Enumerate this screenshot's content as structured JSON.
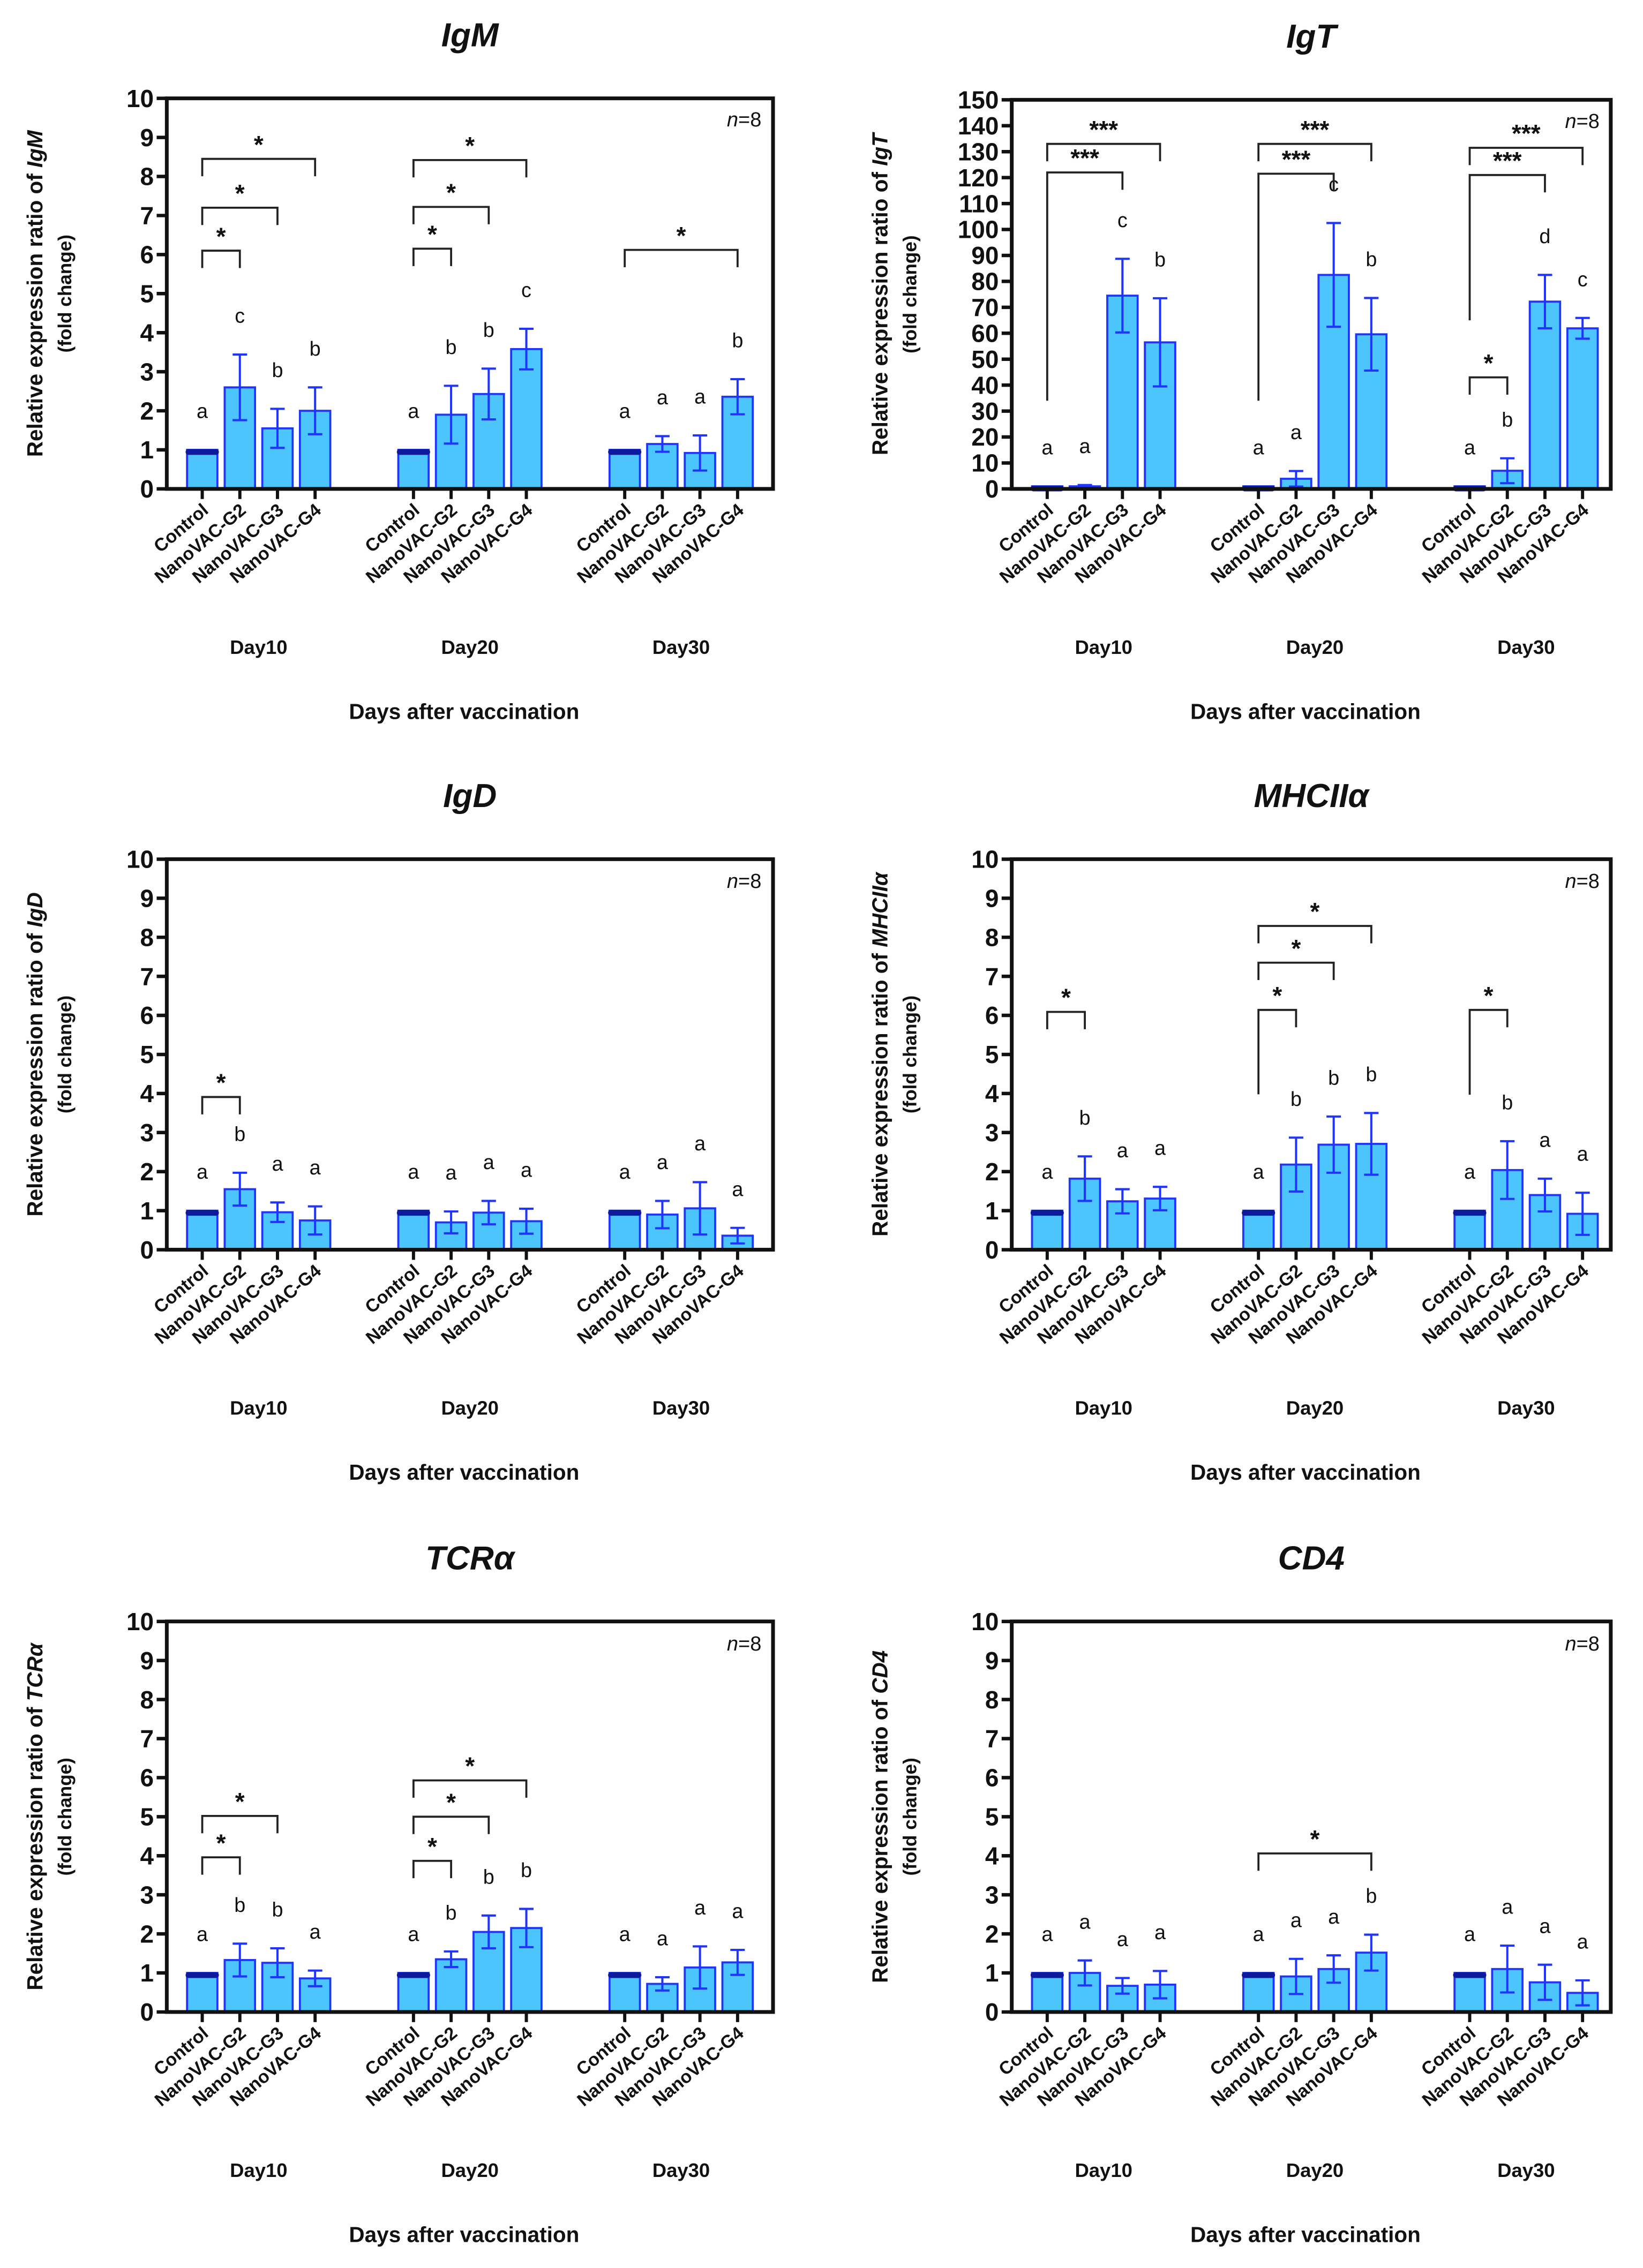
{
  "colors": {
    "bar_fill": "#4cc4fc",
    "bar_stroke": "#1f35ff",
    "error_bar": "#1f35ff",
    "control_points": "#0e1a9c",
    "bracket": "#222222"
  },
  "chart_data": [
    {
      "type": "bar",
      "title": "IgM",
      "ylabel_prefix": "Relative expression ratio of ",
      "ylabel_gene": "IgM",
      "ylabel_line2": "(fold change)",
      "ylim": [
        0,
        10
      ],
      "yticks": [
        "0",
        "1",
        "2",
        "3",
        "4",
        "5",
        "6",
        "7",
        "8",
        "9",
        "10"
      ],
      "n_label": "n=8",
      "xlabel": "Days after vaccination",
      "groups": [
        "Day10",
        "Day20",
        "Day30"
      ],
      "categories": [
        "Control",
        "NanoVAC-G2",
        "NanoVAC-G3",
        "NanoVAC-G4"
      ],
      "series": [
        {
          "group": "Day10",
          "means": [
            1.0,
            2.6,
            1.55,
            2.0
          ],
          "sd": [
            0.0,
            0.84,
            0.5,
            0.6
          ],
          "letters": [
            "a",
            "c",
            "b",
            "b"
          ]
        },
        {
          "group": "Day20",
          "means": [
            1.0,
            1.9,
            2.43,
            3.58
          ],
          "sd": [
            0.0,
            0.74,
            0.65,
            0.52
          ],
          "letters": [
            "a",
            "b",
            "b",
            "c"
          ]
        },
        {
          "group": "Day30",
          "means": [
            1.0,
            1.15,
            0.92,
            2.36
          ],
          "sd": [
            0.0,
            0.2,
            0.45,
            0.45
          ],
          "letters": [
            "a",
            "a",
            "a",
            "b"
          ]
        }
      ],
      "significance": [
        {
          "group": 0,
          "from": 0,
          "to": 1,
          "y": 6.1,
          "label": "*"
        },
        {
          "group": 0,
          "from": 0,
          "to": 2,
          "y": 7.2,
          "label": "*"
        },
        {
          "group": 0,
          "from": 0,
          "to": 3,
          "y": 8.45,
          "label": "*"
        },
        {
          "group": 1,
          "from": 0,
          "to": 1,
          "y": 6.15,
          "label": "*"
        },
        {
          "group": 1,
          "from": 0,
          "to": 2,
          "y": 7.22,
          "label": "*"
        },
        {
          "group": 1,
          "from": 0,
          "to": 3,
          "y": 8.42,
          "label": "*"
        },
        {
          "group": 2,
          "from": 0,
          "to": 3,
          "y": 6.12,
          "label": "*"
        }
      ]
    },
    {
      "type": "bar",
      "title": "IgT",
      "ylabel_prefix": "Relative expression ratio of ",
      "ylabel_gene": "IgT",
      "ylabel_line2": "(fold change)",
      "ylim": [
        0,
        150
      ],
      "yticks": [
        "0",
        "10",
        "20",
        "30",
        "40",
        "50",
        "60",
        "70",
        "80",
        "90",
        "100",
        "110",
        "120",
        "130",
        "140",
        "150"
      ],
      "n_label": "n=8",
      "xlabel": "Days after vaccination",
      "groups": [
        "Day10",
        "Day20",
        "Day30"
      ],
      "categories": [
        "Control",
        "NanoVAC-G2",
        "NanoVAC-G3",
        "NanoVAC-G4"
      ],
      "series": [
        {
          "group": "Day10",
          "means": [
            1.0,
            1.0,
            74.5,
            56.5
          ],
          "sd": [
            0.0,
            0.5,
            14.2,
            17.0
          ],
          "letters": [
            "a",
            "a",
            "c",
            "b"
          ]
        },
        {
          "group": "Day20",
          "means": [
            1.0,
            3.9,
            82.5,
            59.6
          ],
          "sd": [
            0.0,
            3.0,
            20.0,
            14.0
          ],
          "letters": [
            "a",
            "a",
            "c",
            "b"
          ]
        },
        {
          "group": "Day30",
          "means": [
            1.0,
            7.0,
            72.2,
            61.9
          ],
          "sd": [
            0.0,
            4.8,
            10.3,
            4.0
          ],
          "letters": [
            "a",
            "b",
            "d",
            "c"
          ]
        }
      ],
      "significance": [
        {
          "group": 0,
          "from": 0,
          "to": 2,
          "y": 122,
          "label": "***",
          "drop_to": 34
        },
        {
          "group": 0,
          "from": 0,
          "to": 3,
          "y": 133,
          "label": "***"
        },
        {
          "group": 1,
          "from": 0,
          "to": 2,
          "y": 121.5,
          "label": "***",
          "drop_to": 34
        },
        {
          "group": 1,
          "from": 0,
          "to": 3,
          "y": 133,
          "label": "***"
        },
        {
          "group": 2,
          "from": 0,
          "to": 1,
          "y": 43,
          "label": "*"
        },
        {
          "group": 2,
          "from": 0,
          "to": 2,
          "y": 121,
          "label": "***",
          "drop_to": 65
        },
        {
          "group": 2,
          "from": 0,
          "to": 3,
          "y": 131.5,
          "label": "***"
        }
      ]
    },
    {
      "type": "bar",
      "title": "IgD",
      "ylabel_prefix": "Relative expression ratio of ",
      "ylabel_gene": "IgD",
      "ylabel_line2": "(fold change)",
      "ylim": [
        0,
        10
      ],
      "yticks": [
        "0",
        "1",
        "2",
        "3",
        "4",
        "5",
        "6",
        "7",
        "8",
        "9",
        "10"
      ],
      "n_label": "n=8",
      "xlabel": "Days after vaccination",
      "groups": [
        "Day10",
        "Day20",
        "Day30"
      ],
      "categories": [
        "Control",
        "NanoVAC-G2",
        "NanoVAC-G3",
        "NanoVAC-G4"
      ],
      "series": [
        {
          "group": "Day10",
          "means": [
            1.0,
            1.55,
            0.96,
            0.75
          ],
          "sd": [
            0.0,
            0.42,
            0.25,
            0.36
          ],
          "letters": [
            "a",
            "b",
            "a",
            "a"
          ]
        },
        {
          "group": "Day20",
          "means": [
            1.0,
            0.7,
            0.95,
            0.73
          ],
          "sd": [
            0.0,
            0.28,
            0.3,
            0.32
          ],
          "letters": [
            "a",
            "a",
            "a",
            "a"
          ]
        },
        {
          "group": "Day30",
          "means": [
            1.0,
            0.9,
            1.06,
            0.36
          ],
          "sd": [
            0.0,
            0.35,
            0.67,
            0.2
          ],
          "letters": [
            "a",
            "a",
            "a",
            "a"
          ]
        }
      ],
      "significance": [
        {
          "group": 0,
          "from": 0,
          "to": 1,
          "y": 3.91,
          "label": "*"
        }
      ]
    },
    {
      "type": "bar",
      "title": "MHCIIα",
      "ylabel_prefix": "Relative expression ratio of ",
      "ylabel_gene": "MHCIIα",
      "ylabel_line2": "(fold change)",
      "ylim": [
        0,
        10
      ],
      "yticks": [
        "0",
        "1",
        "2",
        "3",
        "4",
        "5",
        "6",
        "7",
        "8",
        "9",
        "10"
      ],
      "n_label": "n=8",
      "xlabel": "Days after vaccination",
      "groups": [
        "Day10",
        "Day20",
        "Day30"
      ],
      "categories": [
        "Control",
        "NanoVAC-G2",
        "NanoVAC-G3",
        "NanoVAC-G4"
      ],
      "series": [
        {
          "group": "Day10",
          "means": [
            1.0,
            1.82,
            1.24,
            1.31
          ],
          "sd": [
            0.0,
            0.57,
            0.31,
            0.3
          ],
          "letters": [
            "a",
            "b",
            "a",
            "a"
          ]
        },
        {
          "group": "Day20",
          "means": [
            1.0,
            2.18,
            2.69,
            2.71
          ],
          "sd": [
            0.0,
            0.69,
            0.72,
            0.79
          ],
          "letters": [
            "a",
            "b",
            "b",
            "b"
          ]
        },
        {
          "group": "Day30",
          "means": [
            1.0,
            2.04,
            1.4,
            0.92
          ],
          "sd": [
            0.0,
            0.74,
            0.42,
            0.54
          ],
          "letters": [
            "a",
            "b",
            "a",
            "a"
          ]
        }
      ],
      "significance": [
        {
          "group": 0,
          "from": 0,
          "to": 1,
          "y": 6.09,
          "label": "*"
        },
        {
          "group": 1,
          "from": 0,
          "to": 1,
          "y": 6.14,
          "label": "*",
          "drop_to": 3.98
        },
        {
          "group": 1,
          "from": 0,
          "to": 2,
          "y": 7.35,
          "label": "*"
        },
        {
          "group": 1,
          "from": 0,
          "to": 3,
          "y": 8.29,
          "label": "*"
        },
        {
          "group": 2,
          "from": 0,
          "to": 1,
          "y": 6.14,
          "label": "*",
          "drop_to": 3.97
        }
      ]
    },
    {
      "type": "bar",
      "title": "TCRα",
      "ylabel_prefix": "Relative expression ratio of ",
      "ylabel_gene": "TCRα",
      "ylabel_line2": "(fold change)",
      "ylim": [
        0,
        10
      ],
      "yticks": [
        "0",
        "1",
        "2",
        "3",
        "4",
        "5",
        "6",
        "7",
        "8",
        "9",
        "10"
      ],
      "n_label": "n=8",
      "xlabel": "Days after vaccination",
      "groups": [
        "Day10",
        "Day20",
        "Day30"
      ],
      "categories": [
        "Control",
        "NanoVAC-G2",
        "NanoVAC-G3",
        "NanoVAC-G4"
      ],
      "series": [
        {
          "group": "Day10",
          "means": [
            1.0,
            1.33,
            1.26,
            0.86
          ],
          "sd": [
            0.0,
            0.42,
            0.37,
            0.2
          ],
          "letters": [
            "a",
            "b",
            "b",
            "a"
          ]
        },
        {
          "group": "Day20",
          "means": [
            1.0,
            1.35,
            2.05,
            2.15
          ],
          "sd": [
            0.0,
            0.2,
            0.42,
            0.49
          ],
          "letters": [
            "a",
            "b",
            "b",
            "b"
          ]
        },
        {
          "group": "Day30",
          "means": [
            1.0,
            0.72,
            1.14,
            1.27
          ],
          "sd": [
            0.0,
            0.17,
            0.54,
            0.32
          ],
          "letters": [
            "a",
            "a",
            "a",
            "a"
          ]
        }
      ],
      "significance": [
        {
          "group": 0,
          "from": 0,
          "to": 1,
          "y": 3.96,
          "label": "*"
        },
        {
          "group": 0,
          "from": 0,
          "to": 2,
          "y": 5.02,
          "label": "*"
        },
        {
          "group": 1,
          "from": 0,
          "to": 1,
          "y": 3.87,
          "label": "*"
        },
        {
          "group": 1,
          "from": 0,
          "to": 2,
          "y": 5.0,
          "label": "*"
        },
        {
          "group": 1,
          "from": 0,
          "to": 3,
          "y": 5.93,
          "label": "*"
        }
      ]
    },
    {
      "type": "bar",
      "title": "CD4",
      "ylabel_prefix": "Relative expression ratio of ",
      "ylabel_gene": "CD4",
      "ylabel_line2": "(fold change)",
      "ylim": [
        0,
        10
      ],
      "yticks": [
        "0",
        "1",
        "2",
        "3",
        "4",
        "5",
        "6",
        "7",
        "8",
        "9",
        "10"
      ],
      "n_label": "n=8",
      "xlabel": "Days after vaccination",
      "groups": [
        "Day10",
        "Day20",
        "Day30"
      ],
      "categories": [
        "Control",
        "NanoVAC-G2",
        "NanoVAC-G3",
        "NanoVAC-G4"
      ],
      "series": [
        {
          "group": "Day10",
          "means": [
            1.0,
            1.0,
            0.67,
            0.7
          ],
          "sd": [
            0.0,
            0.32,
            0.2,
            0.35
          ],
          "letters": [
            "a",
            "a",
            "a",
            "a"
          ]
        },
        {
          "group": "Day20",
          "means": [
            1.0,
            0.91,
            1.1,
            1.52
          ],
          "sd": [
            0.0,
            0.45,
            0.35,
            0.46
          ],
          "letters": [
            "a",
            "a",
            "a",
            "b"
          ]
        },
        {
          "group": "Day30",
          "means": [
            1.0,
            1.1,
            0.76,
            0.49
          ],
          "sd": [
            0.0,
            0.6,
            0.45,
            0.32
          ],
          "letters": [
            "a",
            "a",
            "a",
            "a"
          ]
        }
      ],
      "significance": [
        {
          "group": 1,
          "from": 0,
          "to": 3,
          "y": 4.06,
          "label": "*"
        }
      ]
    }
  ]
}
